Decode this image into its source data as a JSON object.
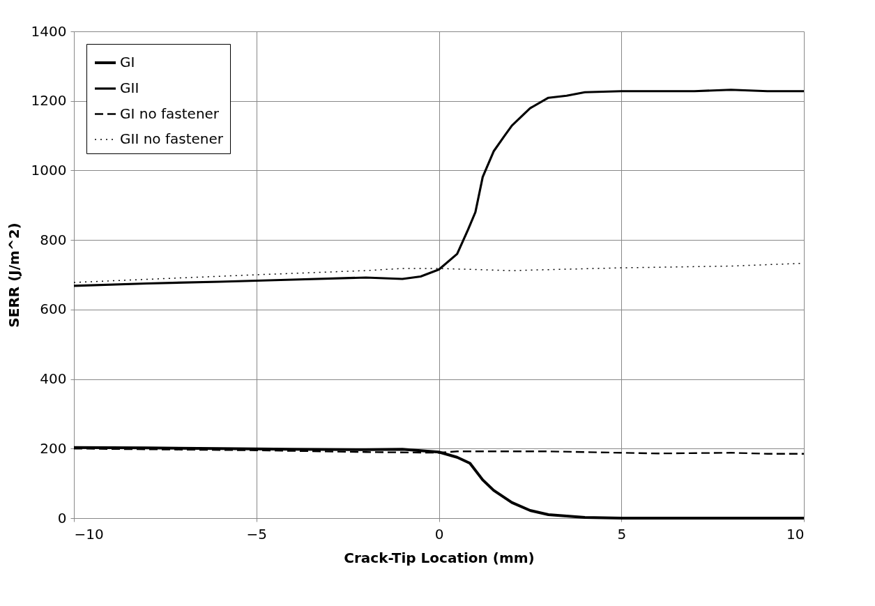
{
  "chart_data": {
    "type": "line",
    "xlabel": "Crack-Tip Location (mm)",
    "ylabel": "SERR (J/m^2)",
    "xlim": [
      -10,
      10
    ],
    "xticks": [
      -10,
      -5,
      0,
      5,
      10
    ],
    "ylim": [
      0,
      1400
    ],
    "yticks": [
      0,
      200,
      400,
      600,
      800,
      1000,
      1200,
      1400
    ],
    "grid": true,
    "legend": "top left",
    "marker": "none",
    "series": [
      {
        "name": "GI",
        "color": "#000000",
        "line_style": "solid",
        "x": [
          -10,
          -8,
          -6,
          -4,
          -2,
          -1,
          0,
          0.5,
          0.85,
          1.2,
          1.5,
          2,
          2.5,
          3,
          4,
          5,
          7,
          10
        ],
        "values": [
          203,
          202,
          200,
          198,
          197,
          198,
          190,
          175,
          158,
          110,
          80,
          45,
          22,
          10,
          2,
          0,
          0,
          0
        ]
      },
      {
        "name": "GII",
        "color": "#000000",
        "line_style": "solid",
        "x": [
          -10,
          -8,
          -6,
          -4,
          -2,
          -1,
          -0.5,
          0,
          0.5,
          0.8,
          1.0,
          1.2,
          1.5,
          1.8,
          2.0,
          2.5,
          3.0,
          3.5,
          4,
          5,
          6,
          7,
          8,
          9,
          10
        ],
        "values": [
          668,
          675,
          680,
          686,
          692,
          688,
          695,
          715,
          760,
          830,
          880,
          981,
          1055,
          1100,
          1129,
          1179,
          1209,
          1215,
          1225,
          1228,
          1228,
          1228,
          1232,
          1228,
          1228
        ]
      },
      {
        "name": "GI no fastener",
        "color": "#000000",
        "line_style": "dashed",
        "x": [
          -10,
          -5,
          -2,
          0,
          0.5,
          3,
          5,
          6,
          8,
          9,
          10
        ],
        "values": [
          200,
          195,
          190,
          188,
          192,
          192,
          188,
          186,
          188,
          185,
          185
        ]
      },
      {
        "name": "GII no fastener",
        "color": "#000000",
        "line_style": "dotted",
        "x": [
          -10,
          -5,
          -2,
          -1,
          0,
          2,
          5,
          8,
          10
        ],
        "values": [
          678,
          700,
          712,
          718,
          718,
          712,
          720,
          725,
          733
        ]
      }
    ]
  }
}
